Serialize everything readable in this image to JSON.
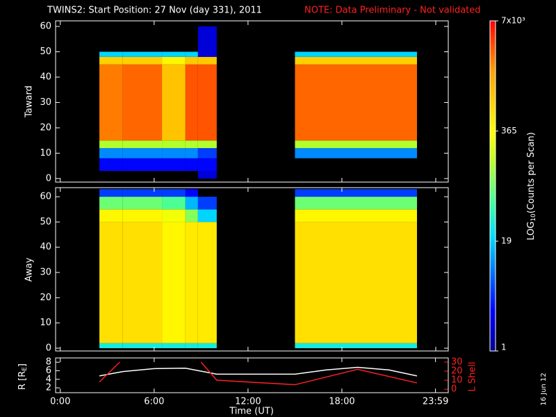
{
  "chart_data": [
    {
      "type": "heatmap",
      "title": "TWINS2: Start Position: 27 Nov (day 331), 2011",
      "note": "NOTE: Data Preliminary - Not validated",
      "note_color": "#ff2020",
      "ylabel": "Taward",
      "x_bins": [
        2.5,
        4,
        6.5,
        8,
        8.8,
        10,
        15,
        22.8
      ],
      "y_bins": [
        0,
        3,
        8,
        12,
        15,
        45,
        48,
        50,
        60
      ],
      "values": [
        [
          null,
          null,
          null,
          null,
          2,
          null,
          null
        ],
        [
          3,
          3,
          3,
          3,
          3,
          null,
          null
        ],
        [
          10,
          10,
          10,
          10,
          5,
          null,
          10
        ],
        [
          150,
          150,
          150,
          150,
          150,
          null,
          150
        ],
        [
          2500,
          3000,
          1000,
          3500,
          3500,
          null,
          3000
        ],
        [
          800,
          800,
          400,
          900,
          900,
          null,
          800
        ],
        [
          20,
          20,
          20,
          20,
          2,
          null,
          20
        ],
        [
          null,
          null,
          null,
          null,
          2,
          null,
          null
        ]
      ],
      "xlim": [
        -0.3,
        24.8
      ],
      "xticks": [
        0,
        6,
        12,
        18,
        24
      ],
      "ylim": [
        -1.4,
        62.2
      ],
      "yticks": [
        0,
        10,
        20,
        30,
        40,
        50,
        60
      ],
      "colorbar": {
        "scale": "log",
        "lim": [
          1,
          7000
        ],
        "ticks": [
          1,
          19,
          365,
          {
            "value": 7000,
            "label": "7x10³"
          }
        ],
        "label": "LOG",
        "label_sub": "10",
        "label_end": "(Counts per Scan)"
      }
    },
    {
      "type": "heatmap",
      "ylabel": "Away",
      "x_bins": [
        2.5,
        4,
        6.5,
        8,
        8.8,
        10,
        15,
        22.8
      ],
      "y_bins": [
        0,
        2,
        50,
        55,
        60,
        63
      ],
      "values": [
        [
          30,
          30,
          30,
          30,
          30,
          null,
          30
        ],
        [
          600,
          600,
          400,
          500,
          500,
          null,
          600
        ],
        [
          400,
          400,
          300,
          100,
          20,
          null,
          400
        ],
        [
          80,
          80,
          60,
          15,
          5,
          null,
          80
        ],
        [
          5,
          5,
          5,
          3,
          null,
          null,
          5
        ]
      ],
      "xlim": [
        -0.3,
        24.8
      ],
      "xticks": [
        0,
        6,
        12,
        18,
        24
      ],
      "ylim": [
        -1.1,
        63.6
      ],
      "yticks": [
        0,
        10,
        20,
        30,
        40,
        50,
        60
      ]
    },
    {
      "type": "line",
      "xlabel": "Time (UT)",
      "ylabel": "R [R",
      "ylabel_sub": "E",
      "ylabel_end": "]",
      "y2label": "L Shell",
      "y2label_color": "#ff2020",
      "date_stamp": "16 Jun 12",
      "xlim": [
        -0.3,
        24.8
      ],
      "xticks": [
        {
          "value": 0,
          "label": "0:00"
        },
        {
          "value": 6,
          "label": "6:00"
        },
        {
          "value": 12,
          "label": "12:00"
        },
        {
          "value": 18,
          "label": "18:00"
        },
        {
          "value": 23.983,
          "label": "23:59"
        }
      ],
      "ylim": [
        0.87,
        9
      ],
      "yticks": [
        2,
        4,
        6,
        8
      ],
      "y2lim": [
        -3.8,
        34.6
      ],
      "y2ticks": [
        0,
        10,
        20,
        30
      ],
      "series": [
        {
          "color": "#ffffff",
          "x": [
            2.5,
            4,
            6,
            8,
            10,
            12,
            15,
            17,
            19,
            21,
            22.8
          ],
          "values": [
            4.8,
            5.8,
            6.5,
            6.6,
            5.2,
            5.2,
            5.2,
            6.2,
            6.8,
            6.2,
            4.8
          ]
        },
        {
          "color": "#ff2020",
          "axis": "y2",
          "x": [
            2.5,
            3.8,
            6.5,
            9,
            10,
            15,
            19,
            22.8
          ],
          "values": [
            8,
            30,
            null,
            30,
            10,
            5,
            22,
            7
          ]
        }
      ]
    }
  ]
}
